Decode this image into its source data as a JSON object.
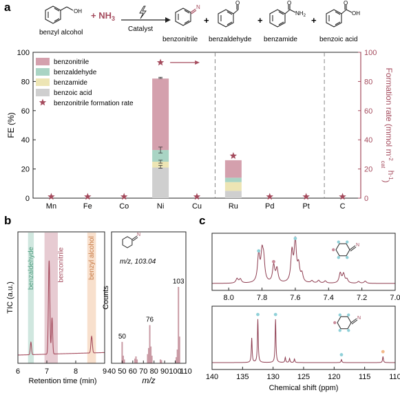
{
  "panel_letters": {
    "a": "a",
    "b": "b",
    "c": "c"
  },
  "reaction": {
    "reactant": "benzyl alcohol",
    "reagent_prefix": "+",
    "reagent": "NH",
    "reagent_sub": "3",
    "catalyst": "Catalyst",
    "product_labels": [
      "benzonitrile",
      "benzaldehyde",
      "benzamide",
      "benzoic acid"
    ],
    "plus": "+",
    "oh_label": "OH",
    "n_label": "N",
    "o_label": "O",
    "nh2_label": "NH",
    "nh2_sub": "2"
  },
  "colors": {
    "benzonitrile": "#d4a0ad",
    "benzaldehyde": "#a9d4c4",
    "benzamide": "#ede5b4",
    "benzoic_acid": "#cfcfcf",
    "star": "#a44a5c",
    "accent": "#a44a5c",
    "tic_line": "#a44a5c",
    "ms_bar": "#c99aa4",
    "nmr_line": "#8d3b4f",
    "nmr_dot_teal": "#8fd0d8",
    "nmr_dot_pink": "#c98a99",
    "nmr_dot_orange": "#f2b98a"
  },
  "chart_data": [
    {
      "id": "a",
      "type": "bar",
      "stacked": true,
      "categories": [
        "Mn",
        "Fe",
        "Co",
        "Ni",
        "Cu",
        "Ru",
        "Pd",
        "Pt",
        "C"
      ],
      "series": [
        {
          "name": "benzonitrile",
          "values": [
            0,
            0,
            0,
            49,
            0,
            12,
            0,
            0,
            0
          ]
        },
        {
          "name": "benzaldehyde",
          "values": [
            0,
            0,
            0,
            8,
            0,
            3,
            0,
            0,
            0
          ]
        },
        {
          "name": "benzamide",
          "values": [
            0,
            0,
            0,
            4,
            0,
            6,
            0,
            0,
            0
          ]
        },
        {
          "name": "benzoic acid",
          "values": [
            0,
            0,
            0,
            21,
            0,
            5,
            0,
            0,
            0
          ]
        }
      ],
      "error_bars": [
        {
          "category": "Ni",
          "y": 82.5,
          "err": 0.4
        },
        {
          "category": "Ni",
          "y": 33,
          "err": 2
        },
        {
          "category": "Ni",
          "y": 25,
          "err": 1
        },
        {
          "category": "Ni",
          "y": 21.5,
          "err": 1
        }
      ],
      "secondary_series": {
        "name": "benzonitrile formation rate",
        "values": [
          1,
          1,
          1,
          93,
          1,
          29,
          1,
          1,
          1
        ]
      },
      "ylabel": "FE (%)",
      "ylabel2_main": "Formation rate (mmol m",
      "ylabel2_sup1": "-2",
      "ylabel2_sub": "cat",
      "ylabel2_mid": " h",
      "ylabel2_sup2": "-1",
      "ylabel2_end": ")",
      "ylim": [
        0,
        100
      ],
      "ylim2": [
        0,
        100
      ],
      "yticks": [
        "0",
        "20",
        "40",
        "60",
        "80",
        "100"
      ],
      "yticks2": [
        "0",
        "20",
        "40",
        "60",
        "80",
        "100"
      ],
      "dividers_after": [
        "Cu",
        "Pt"
      ],
      "legend": "top-left"
    },
    {
      "id": "b1",
      "type": "line",
      "xlabel": "Retention time (min)",
      "ylabel": "TIC (a.u.)",
      "xlim": [
        6,
        9
      ],
      "xticks": [
        "6",
        "7",
        "8",
        "9"
      ],
      "peaks": [
        {
          "x": 6.45,
          "height": 0.12,
          "width": 0.03
        },
        {
          "x": 7.08,
          "height": 0.9,
          "width": 0.035
        },
        {
          "x": 7.18,
          "height": 0.35,
          "width": 0.03
        },
        {
          "x": 8.55,
          "height": 0.16,
          "width": 0.035
        }
      ],
      "bands": [
        {
          "name": "benzaldehyde",
          "start": 6.35,
          "end": 6.55,
          "color": "#a9d4c4"
        },
        {
          "name": "benzonitrile",
          "start": 6.92,
          "end": 7.38,
          "color": "#d4a0ad"
        },
        {
          "name": "benzyl alcohol",
          "start": 8.4,
          "end": 8.7,
          "color": "#f2c6a4"
        }
      ]
    },
    {
      "id": "b2",
      "type": "bar",
      "xlabel": "m/z",
      "ylabel": "Counts",
      "xlim": [
        40,
        110
      ],
      "xticks": [
        "40",
        "50",
        "60",
        "70",
        "80",
        "90",
        "100",
        "110"
      ],
      "annotation": "m/z, 103.04",
      "labeled_peaks": [
        "50",
        "76",
        "103"
      ],
      "x": [
        50,
        51,
        52,
        62,
        63,
        64,
        74,
        75,
        76,
        77,
        78,
        86,
        87,
        101,
        102,
        103,
        104
      ],
      "values": [
        0.28,
        0.1,
        0.05,
        0.06,
        0.09,
        0.05,
        0.12,
        0.2,
        0.5,
        0.22,
        0.1,
        0.05,
        0.04,
        0.08,
        0.18,
        1.0,
        0.35
      ]
    },
    {
      "id": "c1",
      "type": "line",
      "xlabel": "",
      "xlim": [
        8.1,
        7.0
      ],
      "xticks": [
        "8.0",
        "7.8",
        "7.6",
        "7.4",
        "7.2",
        "7.0"
      ],
      "peaks": [
        {
          "x": 7.95,
          "height": 0.1
        },
        {
          "x": 7.93,
          "height": 0.09
        },
        {
          "x": 7.82,
          "height": 0.62
        },
        {
          "x": 7.8,
          "height": 0.58
        },
        {
          "x": 7.79,
          "height": 0.45
        },
        {
          "x": 7.73,
          "height": 0.38
        },
        {
          "x": 7.71,
          "height": 0.3
        },
        {
          "x": 7.62,
          "height": 0.66
        },
        {
          "x": 7.6,
          "height": 0.9
        },
        {
          "x": 7.58,
          "height": 0.35
        },
        {
          "x": 7.56,
          "height": 0.18
        },
        {
          "x": 7.5,
          "height": 0.05
        },
        {
          "x": 7.46,
          "height": 0.06
        },
        {
          "x": 7.42,
          "height": 0.05
        },
        {
          "x": 7.33,
          "height": 0.22
        },
        {
          "x": 7.31,
          "height": 0.2
        },
        {
          "x": 7.29,
          "height": 0.08
        },
        {
          "x": 7.22,
          "height": 0.04
        },
        {
          "x": 7.18,
          "height": 0.05
        }
      ]
    },
    {
      "id": "c2",
      "type": "line",
      "xlabel": "Chemical shift (ppm)",
      "xlim": [
        140,
        110
      ],
      "xticks": [
        "140",
        "135",
        "130",
        "125",
        "120",
        "115",
        "110"
      ],
      "peaks": [
        {
          "x": 133.5,
          "height": 0.48
        },
        {
          "x": 132.5,
          "height": 0.85
        },
        {
          "x": 129.6,
          "height": 0.85
        },
        {
          "x": 128.0,
          "height": 0.1
        },
        {
          "x": 127.3,
          "height": 0.08
        },
        {
          "x": 126.5,
          "height": 0.07
        },
        {
          "x": 118.8,
          "height": 0.06
        },
        {
          "x": 112.0,
          "height": 0.12
        }
      ]
    }
  ]
}
